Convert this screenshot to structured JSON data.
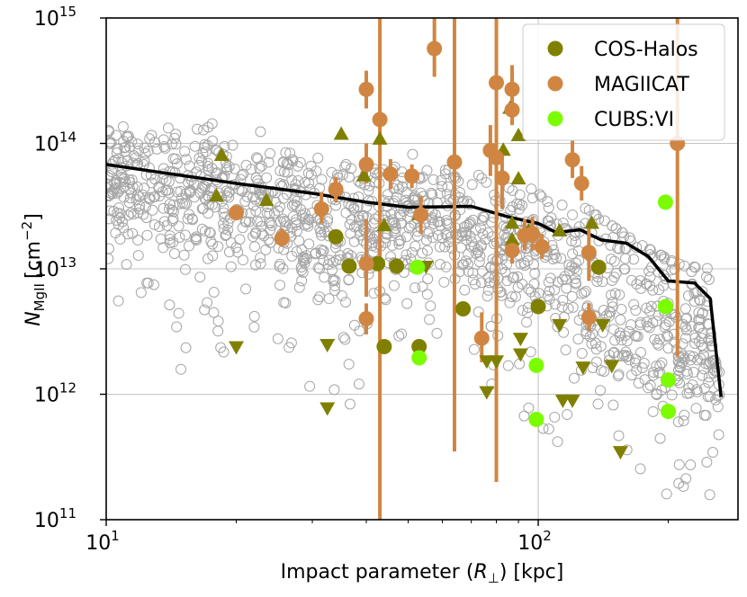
{
  "chart_data": {
    "type": "scatter",
    "xlabel": "Impact parameter (R⊥) [kpc]",
    "xlabel_parts": {
      "pre": "Impact parameter (",
      "sym": "R",
      "sub": "⊥",
      "post": ") [kpc]"
    },
    "ylabel": "N_MgII [cm^-2]",
    "ylabel_parts": {
      "sym": "N",
      "sub": "MgII",
      "unit_pre": "[cm",
      "unit_exp": "−2",
      "unit_post": "]"
    },
    "xscale": "log",
    "yscale": "log",
    "xlim": [
      10,
      290
    ],
    "ylim": [
      100000000000.0,
      1000000000000000.0
    ],
    "x_ticks": [
      {
        "value": 10,
        "base": "10",
        "exp": "1"
      },
      {
        "value": 100,
        "base": "10",
        "exp": "2"
      }
    ],
    "y_ticks": [
      {
        "value": 100000000000.0,
        "base": "10",
        "exp": "11"
      },
      {
        "value": 1000000000000.0,
        "base": "10",
        "exp": "12"
      },
      {
        "value": 10000000000000.0,
        "base": "10",
        "exp": "13"
      },
      {
        "value": 100000000000000.0,
        "base": "10",
        "exp": "14"
      },
      {
        "value": 1000000000000000.0,
        "base": "10",
        "exp": "15"
      }
    ],
    "grid": true,
    "legend_position": "top-right",
    "colors": {
      "cos_halos": "#808000",
      "magiicat": "#d08642",
      "cubs": "#7cfc00",
      "simulation": "#a6a6a6",
      "median": "#000000"
    },
    "legend": [
      {
        "name": "COS-Halos",
        "color_key": "cos_halos"
      },
      {
        "name": "MAGIICAT",
        "color_key": "magiicat"
      },
      {
        "name": "CUBS:VI",
        "color_key": "cubs"
      }
    ],
    "median_line": {
      "x": [
        10,
        20,
        30,
        40,
        50,
        70,
        85,
        100,
        110,
        125,
        140,
        160,
        180,
        200,
        210,
        230,
        250,
        265
      ],
      "y": [
        68000000000000.0,
        48000000000000.0,
        40000000000000.0,
        34000000000000.0,
        31000000000000.0,
        31500000000000.0,
        26000000000000.0,
        23000000000000.0,
        19500000000000.0,
        20500000000000.0,
        17000000000000.0,
        16000000000000.0,
        12500000000000.0,
        8000000000000.0,
        7900000000000.0,
        7700000000000.0,
        5800000000000.0,
        950000000000.0
      ]
    },
    "series": [
      {
        "name": "COS-Halos",
        "detections": [
          {
            "x": 34,
            "y": 18000000000000.0
          },
          {
            "x": 36.5,
            "y": 10500000000000.0
          },
          {
            "x": 42.5,
            "y": 11000000000000.0
          },
          {
            "x": 47,
            "y": 10500000000000.0
          },
          {
            "x": 44,
            "y": 2400000000000.0
          },
          {
            "x": 53,
            "y": 2400000000000.0
          },
          {
            "x": 67,
            "y": 4800000000000.0
          },
          {
            "x": 100,
            "y": 5000000000000.0
          },
          {
            "x": 138,
            "y": 10300000000000.0
          }
        ],
        "lower_limits": [
          {
            "x": 18,
            "y": 38000000000000.0
          },
          {
            "x": 18.5,
            "y": 80000000000000.0
          },
          {
            "x": 23.5,
            "y": 35000000000000.0
          },
          {
            "x": 35,
            "y": 118000000000000.0
          },
          {
            "x": 43,
            "y": 108000000000000.0
          },
          {
            "x": 39.5,
            "y": 55000000000000.0
          },
          {
            "x": 44,
            "y": 22000000000000.0
          },
          {
            "x": 53,
            "y": 27000000000000.0
          },
          {
            "x": 83,
            "y": 88000000000000.0
          },
          {
            "x": 86,
            "y": 190000000000000.0
          },
          {
            "x": 90,
            "y": 115000000000000.0
          },
          {
            "x": 90,
            "y": 52000000000000.0
          },
          {
            "x": 87,
            "y": 23000000000000.0
          },
          {
            "x": 87,
            "y": 17000000000000.0
          },
          {
            "x": 95,
            "y": 20000000000000.0
          },
          {
            "x": 112,
            "y": 20000000000000.0
          },
          {
            "x": 133,
            "y": 23000000000000.0
          }
        ],
        "upper_limits": [
          {
            "x": 20,
            "y": 2400000000000.0
          },
          {
            "x": 32.5,
            "y": 2500000000000.0
          },
          {
            "x": 32.5,
            "y": 780000000000.0
          },
          {
            "x": 55,
            "y": 10500000000000.0
          },
          {
            "x": 76,
            "y": 1850000000000.0
          },
          {
            "x": 76,
            "y": 1050000000000.0
          },
          {
            "x": 80,
            "y": 1850000000000.0
          },
          {
            "x": 91,
            "y": 2800000000000.0
          },
          {
            "x": 91,
            "y": 2100000000000.0
          },
          {
            "x": 112,
            "y": 3600000000000.0
          },
          {
            "x": 114,
            "y": 900000000000.0
          },
          {
            "x": 120,
            "y": 900000000000.0
          },
          {
            "x": 127,
            "y": 1650000000000.0
          },
          {
            "x": 141,
            "y": 3600000000000.0
          },
          {
            "x": 148,
            "y": 1700000000000.0
          },
          {
            "x": 155,
            "y": 350000000000.0
          }
        ]
      },
      {
        "name": "MAGIICAT",
        "points": [
          {
            "x": 20,
            "y": 28000000000000.0,
            "lo": null,
            "hi": null
          },
          {
            "x": 25.5,
            "y": 17500000000000.0,
            "lo": 15000000000000.0,
            "hi": 21000000000000.0
          },
          {
            "x": 31.5,
            "y": 30000000000000.0,
            "lo": 23000000000000.0,
            "hi": 41000000000000.0
          },
          {
            "x": 34,
            "y": 43000000000000.0,
            "lo": 34000000000000.0,
            "hi": 54000000000000.0
          },
          {
            "x": 40,
            "y": 270000000000000.0,
            "lo": 190000000000000.0,
            "hi": 380000000000000.0
          },
          {
            "x": 40,
            "y": 68000000000000.0,
            "lo": 48000000000000.0,
            "hi": 100000000000000.0
          },
          {
            "x": 40,
            "y": 11000000000000.0,
            "lo": 6000000000000.0,
            "hi": 25000000000000.0
          },
          {
            "x": 40,
            "y": 4000000000000.0,
            "lo": 3000000000000.0,
            "hi": 5300000000000.0
          },
          {
            "x": 43,
            "y": 155000000000000.0,
            "lo": 100000000000.0,
            "hi": 1000000000000000.0
          },
          {
            "x": 45.5,
            "y": 57000000000000.0,
            "lo": 43000000000000.0,
            "hi": 75000000000000.0
          },
          {
            "x": 51,
            "y": 55000000000000.0,
            "lo": 44000000000000.0,
            "hi": 68000000000000.0
          },
          {
            "x": 53.5,
            "y": 27000000000000.0,
            "lo": 19000000000000.0,
            "hi": 38000000000000.0
          },
          {
            "x": 57.5,
            "y": 570000000000000.0,
            "lo": 340000000000000.0,
            "hi": 1000000000000000.0
          },
          {
            "x": 64,
            "y": 71000000000000.0,
            "lo": 350000000000.0,
            "hi": 1000000000000000.0
          },
          {
            "x": 74,
            "y": 2800000000000.0,
            "lo": 1800000000000.0,
            "hi": 4500000000000.0
          },
          {
            "x": 77.5,
            "y": 88000000000000.0,
            "lo": 55000000000000.0,
            "hi": 140000000000000.0
          },
          {
            "x": 80,
            "y": 305000000000000.0,
            "lo": 200000000000.0,
            "hi": 1000000000000000.0
          },
          {
            "x": 80,
            "y": 77000000000000.0,
            "lo": 50000000000000.0,
            "hi": 120000000000000.0
          },
          {
            "x": 82.5,
            "y": 53000000000000.0,
            "lo": 30000000000000.0,
            "hi": 90000000000000.0
          },
          {
            "x": 87,
            "y": 270000000000000.0,
            "lo": 180000000000000.0,
            "hi": 420000000000000.0
          },
          {
            "x": 87,
            "y": 185000000000000.0,
            "lo": 140000000000000.0,
            "hi": 250000000000000.0
          },
          {
            "x": 87,
            "y": 14000000000000.0,
            "lo": 11000000000000.0,
            "hi": 18000000000000.0
          },
          {
            "x": 93,
            "y": 18500000000000.0,
            "lo": 14000000000000.0,
            "hi": 25000000000000.0
          },
          {
            "x": 97,
            "y": 19000000000000.0,
            "lo": 14000000000000.0,
            "hi": 26000000000000.0
          },
          {
            "x": 102,
            "y": 15000000000000.0,
            "lo": 12000000000000.0,
            "hi": 19000000000000.0
          },
          {
            "x": 120,
            "y": 74000000000000.0,
            "lo": 53000000000000.0,
            "hi": 105000000000000.0
          },
          {
            "x": 126,
            "y": 48000000000000.0,
            "lo": 35000000000000.0,
            "hi": 66000000000000.0
          },
          {
            "x": 131,
            "y": 13500000000000.0,
            "lo": 8000000000000.0,
            "hi": 23000000000000.0
          },
          {
            "x": 131,
            "y": 4100000000000.0,
            "lo": 3200000000000.0,
            "hi": 5300000000000.0
          },
          {
            "x": 210,
            "y": 100000000000000.0,
            "lo": 2000000000000.0,
            "hi": 1000000000000000.0
          }
        ]
      },
      {
        "name": "CUBS:VI",
        "points": [
          {
            "x": 52.5,
            "y": 10300000000000.0
          },
          {
            "x": 53,
            "y": 1950000000000.0
          },
          {
            "x": 99,
            "y": 1700000000000.0
          },
          {
            "x": 99,
            "y": 630000000000.0
          },
          {
            "x": 197,
            "y": 34000000000000.0
          },
          {
            "x": 197,
            "y": 5000000000000.0
          },
          {
            "x": 200,
            "y": 1300000000000.0
          },
          {
            "x": 200,
            "y": 730000000000.0
          }
        ]
      }
    ],
    "simulation_cloud": {
      "marker": "open-circle",
      "envelope_upper": [
        [
          10,
          160000000000000.0
        ],
        [
          12,
          200000000000000.0
        ],
        [
          15,
          230000000000000.0
        ],
        [
          18,
          210000000000000.0
        ],
        [
          22,
          180000000000000.0
        ],
        [
          27,
          110000000000000.0
        ],
        [
          33,
          90000000000000.0
        ],
        [
          40,
          130000000000000.0
        ],
        [
          50,
          110000000000000.0
        ],
        [
          65,
          80000000000000.0
        ],
        [
          80,
          65000000000000.0
        ],
        [
          100,
          40000000000000.0
        ],
        [
          130,
          30000000000000.0
        ],
        [
          170,
          16000000000000.0
        ],
        [
          210,
          11000000000000.0
        ],
        [
          250,
          10000000000000.0
        ],
        [
          270,
          1000000000000.0
        ]
      ],
      "envelope_lower": [
        [
          10,
          5000000000000.0
        ],
        [
          15,
          1500000000000.0
        ],
        [
          20,
          1800000000000.0
        ],
        [
          25,
          1500000000000.0
        ],
        [
          30,
          1100000000000.0
        ],
        [
          35,
          700000000000.0
        ],
        [
          45,
          1300000000000.0
        ],
        [
          55,
          2000000000000.0
        ],
        [
          70,
          1200000000000.0
        ],
        [
          85,
          600000000000.0
        ],
        [
          100,
          400000000000.0
        ],
        [
          130,
          350000000000.0
        ],
        [
          170,
          200000000000.0
        ],
        [
          210,
          140000000000.0
        ],
        [
          250,
          150000000000.0
        ],
        [
          270,
          280000000000.0
        ]
      ],
      "approx_count": 1400
    }
  }
}
